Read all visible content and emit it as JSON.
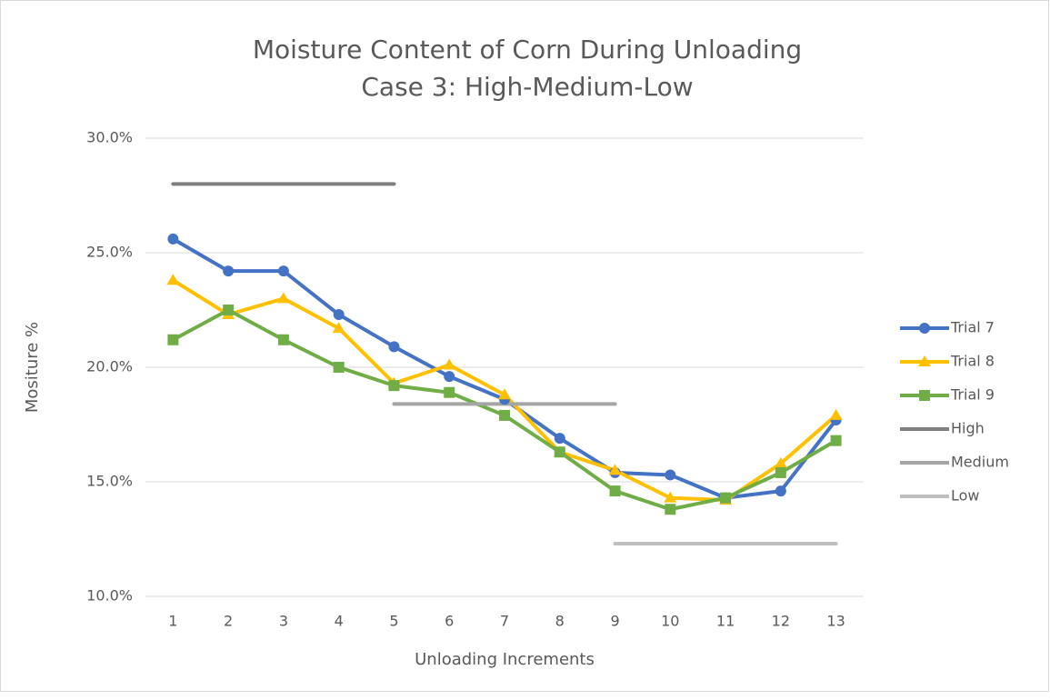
{
  "chart_data": {
    "type": "line",
    "title": "Moisture Content of Corn During Unloading",
    "subtitle": "Case 3: High-Medium-Low",
    "x_label": "Unloading Increments",
    "y_label": "Mositure %",
    "categories": [
      "1",
      "2",
      "3",
      "4",
      "5",
      "6",
      "7",
      "8",
      "9",
      "10",
      "11",
      "12",
      "13"
    ],
    "series": [
      {
        "name": "Trial 7",
        "color": "#4472c4",
        "marker": "circle",
        "values": [
          25.6,
          24.2,
          24.2,
          22.3,
          20.9,
          19.6,
          18.6,
          16.9,
          15.4,
          15.3,
          14.3,
          14.6,
          17.7
        ]
      },
      {
        "name": "Trial 8",
        "color": "#ffc000",
        "marker": "triangle",
        "values": [
          23.8,
          22.3,
          23.0,
          21.7,
          19.3,
          20.1,
          18.8,
          16.3,
          15.5,
          14.3,
          14.2,
          15.8,
          17.9
        ]
      },
      {
        "name": "Trial 9",
        "color": "#70ad47",
        "marker": "square",
        "values": [
          21.2,
          22.5,
          21.2,
          20.0,
          19.2,
          18.9,
          17.9,
          16.3,
          14.6,
          13.8,
          14.3,
          15.4,
          16.8
        ]
      },
      {
        "name": "High",
        "color": "#7f7f7f",
        "marker": "none",
        "values": [
          28.0,
          28.0,
          28.0,
          28.0,
          28.0,
          null,
          null,
          null,
          null,
          null,
          null,
          null,
          null
        ]
      },
      {
        "name": "Medium",
        "color": "#a5a5a5",
        "marker": "none",
        "values": [
          null,
          null,
          null,
          null,
          18.4,
          18.4,
          18.4,
          18.4,
          18.4,
          null,
          null,
          null,
          null
        ]
      },
      {
        "name": "Low",
        "color": "#bfbfbf",
        "marker": "none",
        "values": [
          null,
          null,
          null,
          null,
          null,
          null,
          null,
          null,
          12.3,
          12.3,
          12.3,
          12.3,
          12.3
        ]
      }
    ],
    "ylim": [
      10,
      30
    ],
    "yticks": [
      {
        "value": 10,
        "label": "10.0%"
      },
      {
        "value": 15,
        "label": "15.0%"
      },
      {
        "value": 20,
        "label": "20.0%"
      },
      {
        "value": 25,
        "label": "25.0%"
      },
      {
        "value": 30,
        "label": "30.0%"
      }
    ],
    "grid": true,
    "legend": "right"
  }
}
